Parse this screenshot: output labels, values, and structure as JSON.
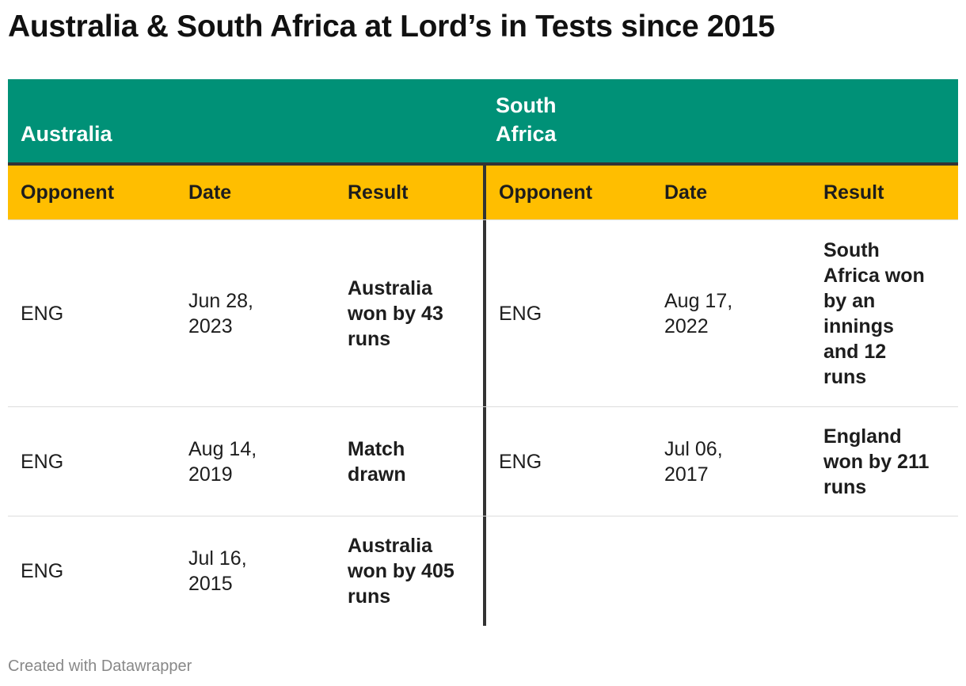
{
  "title": "Australia & South Africa at Lord’s in Tests since 2015",
  "groups": [
    {
      "label": "Australia",
      "color": "#009177"
    },
    {
      "label": "South Africa",
      "color": "#009177"
    }
  ],
  "header_color": "#ffbe00",
  "columns": [
    "Opponent",
    "Date",
    "Result",
    "Opponent",
    "Date",
    "Result"
  ],
  "rows": [
    {
      "a_opp": "ENG",
      "a_date": "Jun 28, 2023",
      "a_result": "Australia won by 43 runs",
      "b_opp": "ENG",
      "b_date": "Aug 17, 2022",
      "b_result": "South Africa won by an innings and 12 runs"
    },
    {
      "a_opp": "ENG",
      "a_date": "Aug 14, 2019",
      "a_result": "Match drawn",
      "b_opp": "ENG",
      "b_date": "Jul 06, 2017",
      "b_result": "England won by 211 runs"
    },
    {
      "a_opp": "ENG",
      "a_date": "Jul 16, 2015",
      "a_result": "Australia won by 405 runs",
      "b_opp": "",
      "b_date": "",
      "b_result": ""
    }
  ],
  "footer": "Created with Datawrapper"
}
